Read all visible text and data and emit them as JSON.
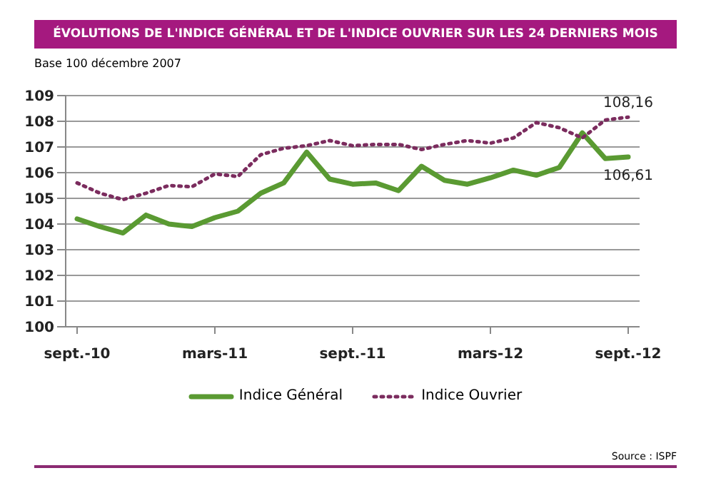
{
  "chart_data": {
    "type": "line",
    "title": "ÉVOLUTIONS DE L'INDICE GÉNÉRAL ET DE L'INDICE OUVRIER SUR LES 24 DERNIERS MOIS",
    "subtitle": "Base 100 décembre 2007",
    "categories": [
      "sept.-10",
      null,
      null,
      null,
      null,
      null,
      "mars-11",
      null,
      null,
      null,
      null,
      null,
      "sept.-11",
      null,
      null,
      null,
      null,
      null,
      "mars-12",
      null,
      null,
      null,
      null,
      null,
      "sept.-12"
    ],
    "series": [
      {
        "name": "Indice Général",
        "color": "#5a9a32",
        "line_style": "solid",
        "values": [
          104.2,
          103.9,
          103.65,
          104.35,
          104.0,
          103.9,
          104.25,
          104.5,
          105.2,
          105.6,
          106.8,
          105.75,
          105.55,
          105.6,
          105.3,
          106.25,
          105.7,
          105.55,
          105.8,
          106.1,
          105.9,
          106.2,
          107.55,
          106.55,
          106.61
        ],
        "value_labels": [
          null,
          null,
          null,
          null,
          null,
          null,
          null,
          null,
          null,
          null,
          null,
          null,
          null,
          null,
          null,
          null,
          null,
          null,
          null,
          null,
          null,
          null,
          null,
          null,
          "106,61"
        ]
      },
      {
        "name": "Indice Ouvrier",
        "color": "#7b2c5e",
        "line_style": "dotted",
        "values": [
          105.6,
          105.2,
          104.95,
          105.2,
          105.5,
          105.45,
          105.95,
          105.85,
          106.7,
          106.95,
          107.05,
          107.25,
          107.05,
          107.1,
          107.1,
          106.9,
          107.1,
          107.25,
          107.15,
          107.35,
          107.95,
          107.75,
          107.35,
          108.05,
          108.16
        ],
        "value_labels": [
          null,
          null,
          null,
          null,
          null,
          null,
          null,
          null,
          null,
          null,
          null,
          null,
          null,
          null,
          null,
          null,
          null,
          null,
          null,
          null,
          null,
          null,
          null,
          null,
          "108,16"
        ]
      }
    ],
    "ylim": [
      100,
      109
    ],
    "yticks": [
      100,
      101,
      102,
      103,
      104,
      105,
      106,
      107,
      108,
      109
    ],
    "grid": "y",
    "legend": "bottom",
    "marker": "none",
    "annotations": [
      "Source : ISPF"
    ]
  }
}
